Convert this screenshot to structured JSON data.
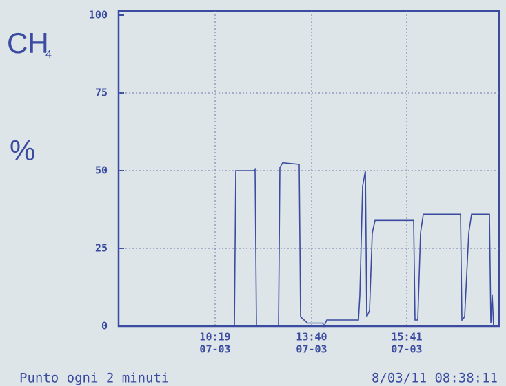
{
  "chart_data": {
    "type": "line",
    "ylabel": "CH",
    "ylabel_subscript": "4",
    "unit": "%",
    "footer_left": "Punto ogni  2 minuti",
    "footer_right": "8/03/11 08:38:11",
    "color": "#3b4ba0",
    "grid": true,
    "ylim": [
      0,
      100
    ],
    "yticks": [
      0,
      25,
      50,
      75,
      100
    ],
    "xlim": [
      0,
      276
    ],
    "xticks": [
      {
        "value": 70,
        "label": "10:19"
      },
      {
        "value": 140,
        "label": "13:40"
      },
      {
        "value": 209,
        "label": "15:41"
      }
    ],
    "xtick_dates": [
      "07-03",
      "07-03",
      "07-03"
    ],
    "x": [
      75,
      84,
      85,
      98,
      99,
      100,
      116,
      117,
      119,
      131,
      132,
      137,
      148,
      149,
      151,
      174,
      175,
      177,
      179,
      180,
      182,
      184,
      186,
      214,
      215,
      217,
      219,
      221,
      248,
      249,
      251,
      254,
      256,
      269,
      270,
      271,
      272,
      275
    ],
    "values": [
      0,
      0,
      50,
      50,
      50.5,
      0,
      0,
      51,
      52.5,
      52,
      3,
      1,
      1,
      0,
      2,
      2,
      10,
      45,
      50,
      3,
      5,
      30,
      34,
      34,
      2,
      2,
      30,
      36,
      36,
      2,
      3,
      30,
      36,
      36,
      1,
      10,
      0,
      0
    ]
  }
}
